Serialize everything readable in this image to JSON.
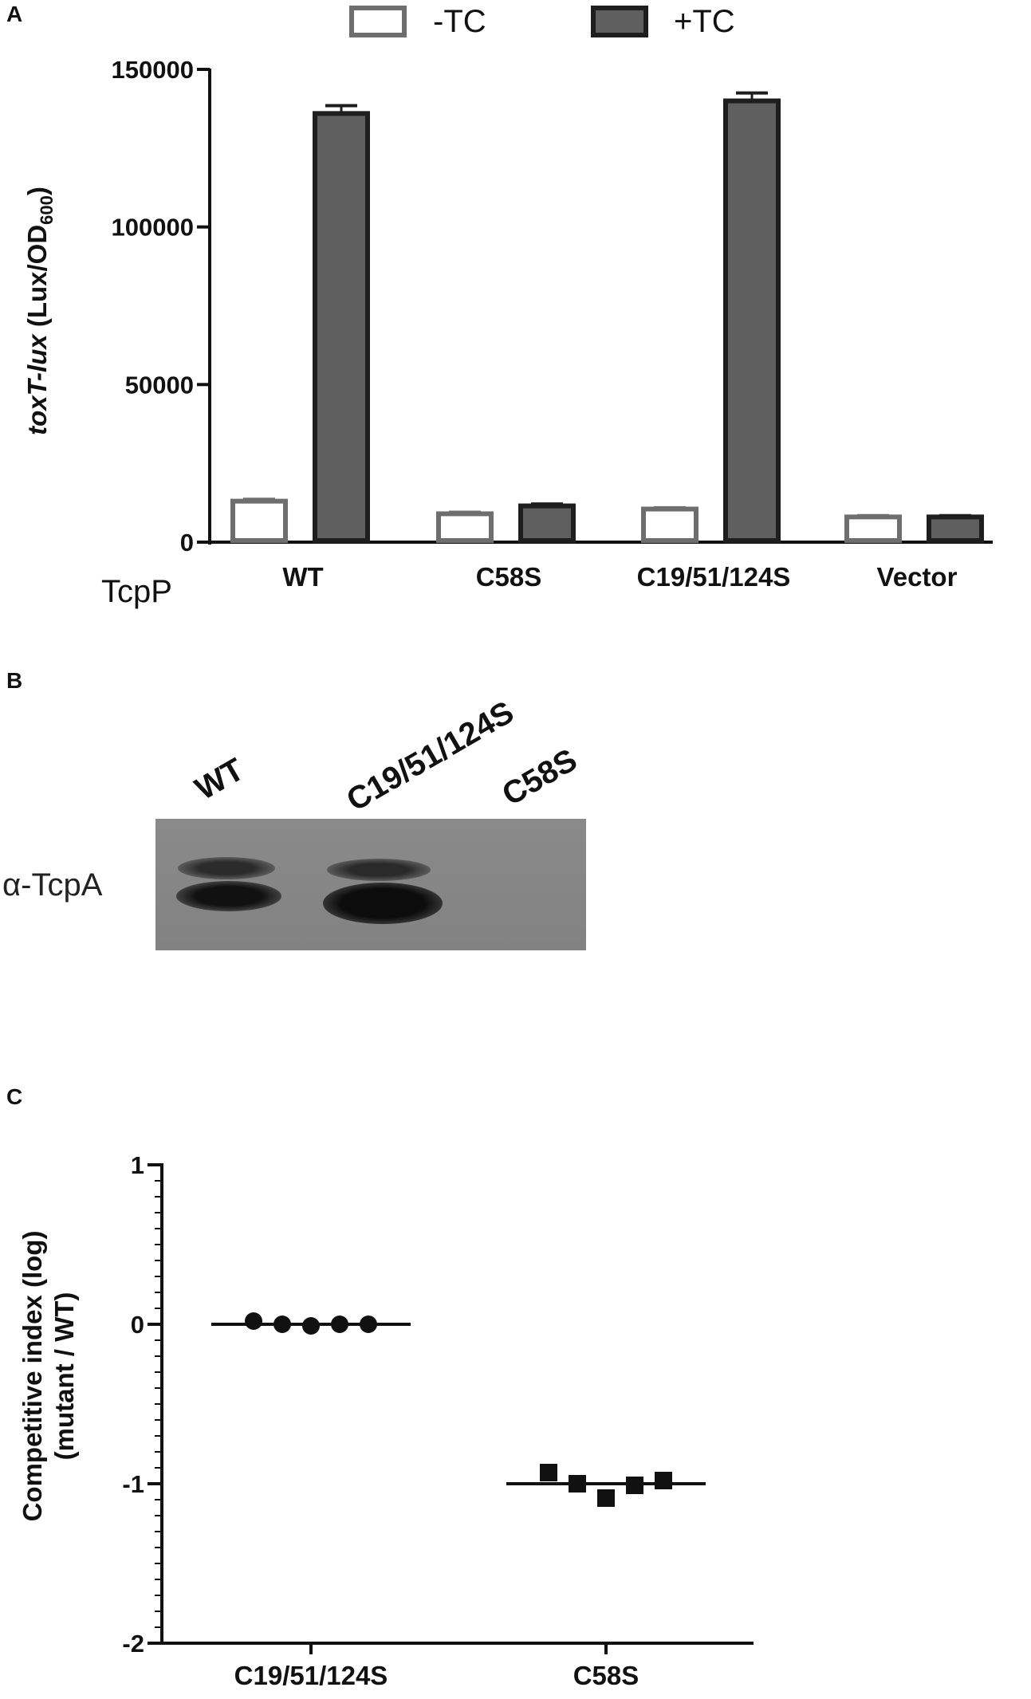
{
  "panel_labels": {
    "a": "A",
    "b": "B",
    "c": "C"
  },
  "panel_a": {
    "chart_data": {
      "type": "bar",
      "ylabel_italic": "toxT-lux",
      "ylabel_rest": " (Lux/OD",
      "ylabel_sub": "600",
      "ylabel_close": ")",
      "row_label": "TcpP",
      "categories": [
        "WT",
        "C58S",
        "C19/51/124S",
        "Vector"
      ],
      "series": [
        {
          "name": "-TC",
          "values": [
            13000,
            9000,
            10500,
            8000
          ],
          "errors": [
            600,
            500,
            400,
            400
          ],
          "color": "#ffffff",
          "stroke": "#6e6e6e"
        },
        {
          "name": "+TC",
          "values": [
            136000,
            11500,
            140000,
            8000
          ],
          "errors": [
            2500,
            600,
            2500,
            400
          ],
          "color": "#5f5f5f",
          "stroke": "#1e1e1e"
        }
      ],
      "ylim": [
        0,
        150000
      ],
      "yticks": [
        "0",
        "50000",
        "100000",
        "150000"
      ],
      "ytick_values": [
        0,
        50000,
        100000,
        150000
      ],
      "legend_position": "top"
    }
  },
  "panel_b": {
    "lane_labels": [
      "WT",
      "C19/51/124S",
      "C58S"
    ],
    "blot_label": "α-TcpA",
    "background_color": "#878787",
    "band_color": "#151515"
  },
  "panel_c": {
    "chart_data": {
      "type": "scatter",
      "ylabel_line1": "Competitive index (log)",
      "ylabel_line2": "(mutant / WT)",
      "categories": [
        "C19/51/124S",
        "C58S"
      ],
      "series": [
        {
          "category": "C19/51/124S",
          "marker": "circle",
          "values": [
            0.02,
            0.0,
            -0.01,
            0.0,
            0.0
          ],
          "median": 0.0
        },
        {
          "category": "C58S",
          "marker": "square",
          "values": [
            -0.93,
            -1.0,
            -1.09,
            -1.01,
            -0.98
          ],
          "median": -1.0
        }
      ],
      "ylim": [
        -2,
        1
      ],
      "yticks": [
        "-2",
        "-1",
        "0",
        "1"
      ],
      "ytick_values": [
        -2,
        -1,
        0,
        1
      ]
    }
  }
}
